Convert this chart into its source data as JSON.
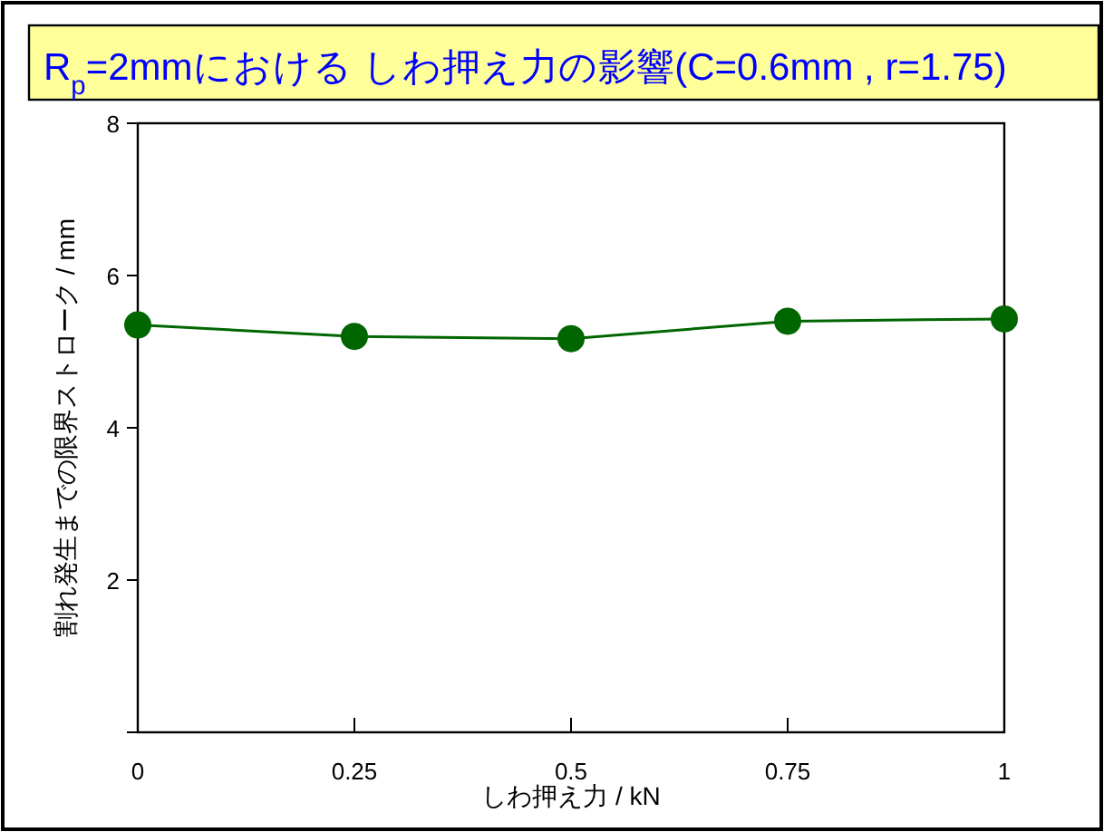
{
  "chart_data": {
    "type": "line",
    "title": "R$_{p}$=2mmにおける しわ押え力の影響(C=0.6mm , r=1.75)",
    "xlabel": "しわ押え力 / kN",
    "ylabel": "割れ発生までの限界ストローク / mm",
    "x": [
      0,
      0.25,
      0.5,
      0.75,
      1
    ],
    "series": [
      {
        "color": "#006600",
        "values": [
          5.35,
          5.2,
          5.17,
          5.4,
          5.43
        ]
      }
    ],
    "xlim": [
      0,
      1
    ],
    "ylim": [
      0,
      8
    ],
    "xticks": [
      {
        "value": 0,
        "label": "0"
      },
      0.25,
      0.5,
      0.75,
      1
    ],
    "yticks": [
      {
        "value": 0,
        "label": null
      },
      2,
      4,
      6,
      8
    ],
    "marker": "circle",
    "line_style": "solid",
    "grid": false
  }
}
